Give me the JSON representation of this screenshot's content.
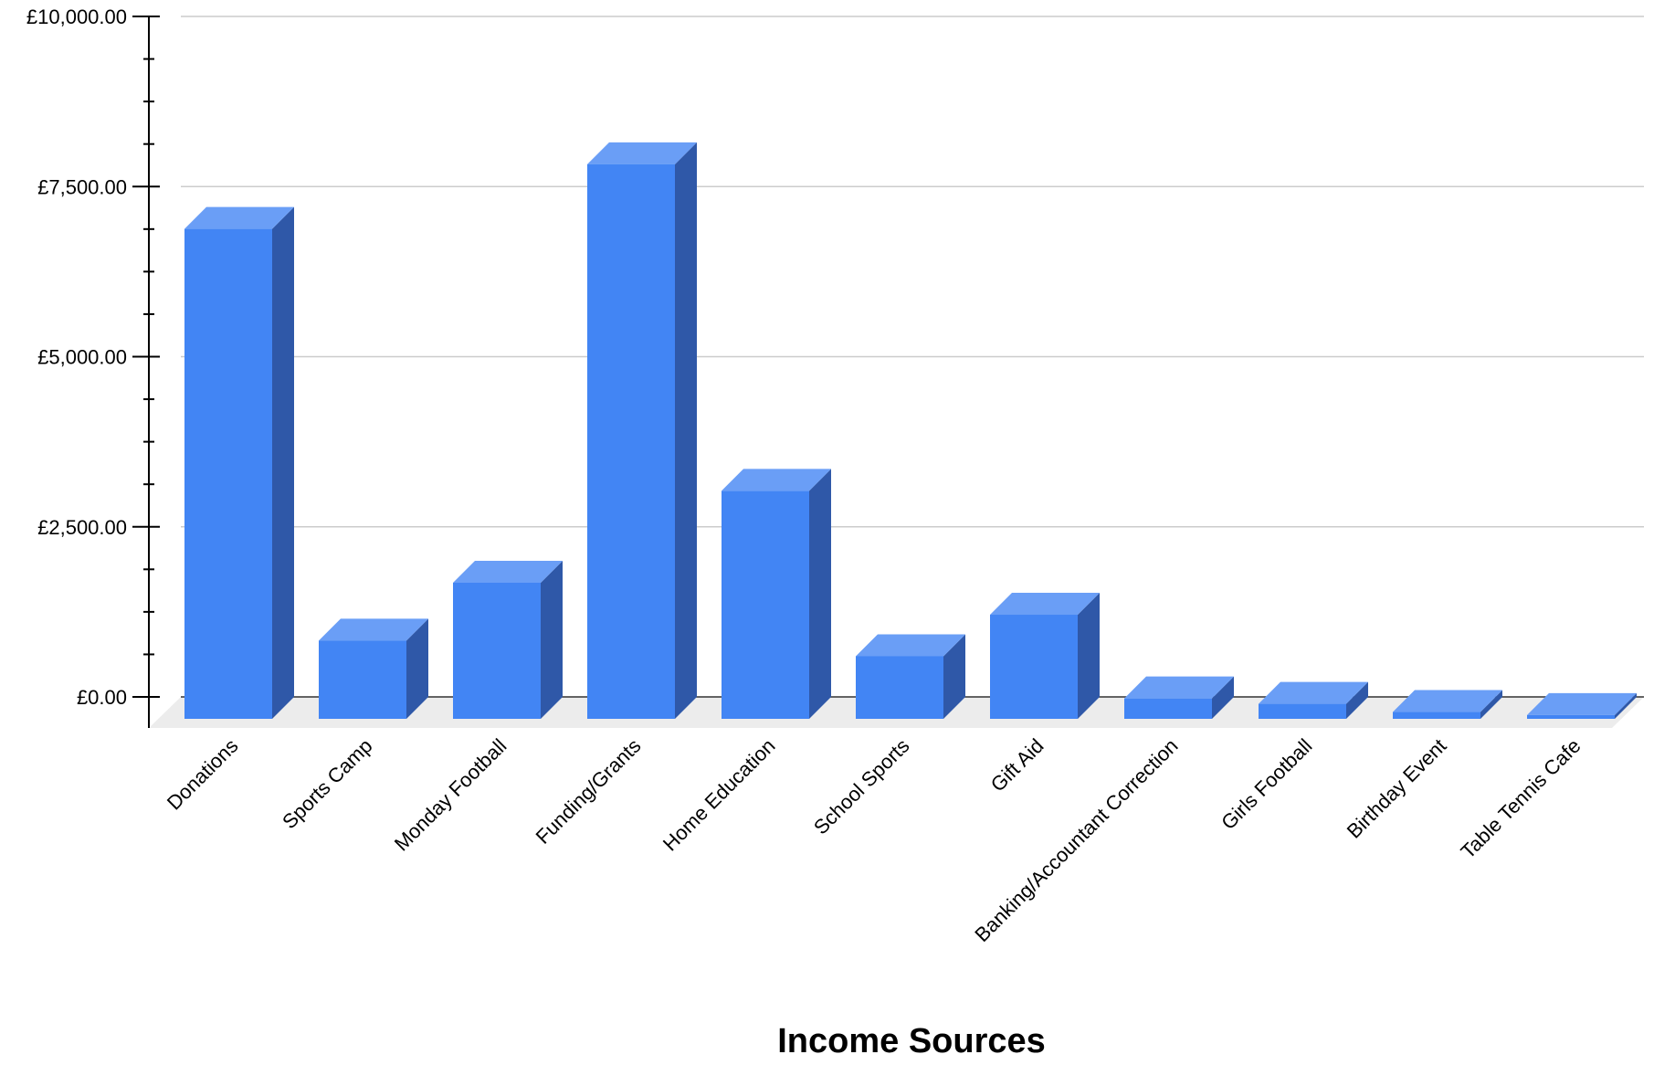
{
  "chart_data": {
    "type": "bar",
    "title": "",
    "xlabel": "Income Sources",
    "ylabel": "",
    "categories": [
      "Donations",
      "Sports Camp",
      "Monday Football",
      "Funding/Grants",
      "Home Education",
      "School Sports",
      "Gift Aid",
      "Banking/Accountant Correction",
      "Girls Football",
      "Birthday Event",
      "Table Tennis Cafe"
    ],
    "values": [
      7200,
      1150,
      2000,
      8150,
      3350,
      920,
      1530,
      300,
      220,
      100,
      55
    ],
    "ylim": [
      0,
      10000
    ],
    "yticks": [
      0,
      2500,
      5000,
      7500,
      10000
    ],
    "ytick_labels": [
      "£0.00",
      "£2,500.00",
      "£5,000.00",
      "£7,500.00",
      "£10,000.00"
    ],
    "grid": true,
    "legend": "none",
    "style": "3d-column"
  },
  "colors": {
    "bar_front": "#4285f4",
    "bar_top": "#6a9ef6",
    "bar_side": "#2f58a8",
    "grid": "#cccccc",
    "axis": "#000000",
    "floor": "#ececec"
  }
}
